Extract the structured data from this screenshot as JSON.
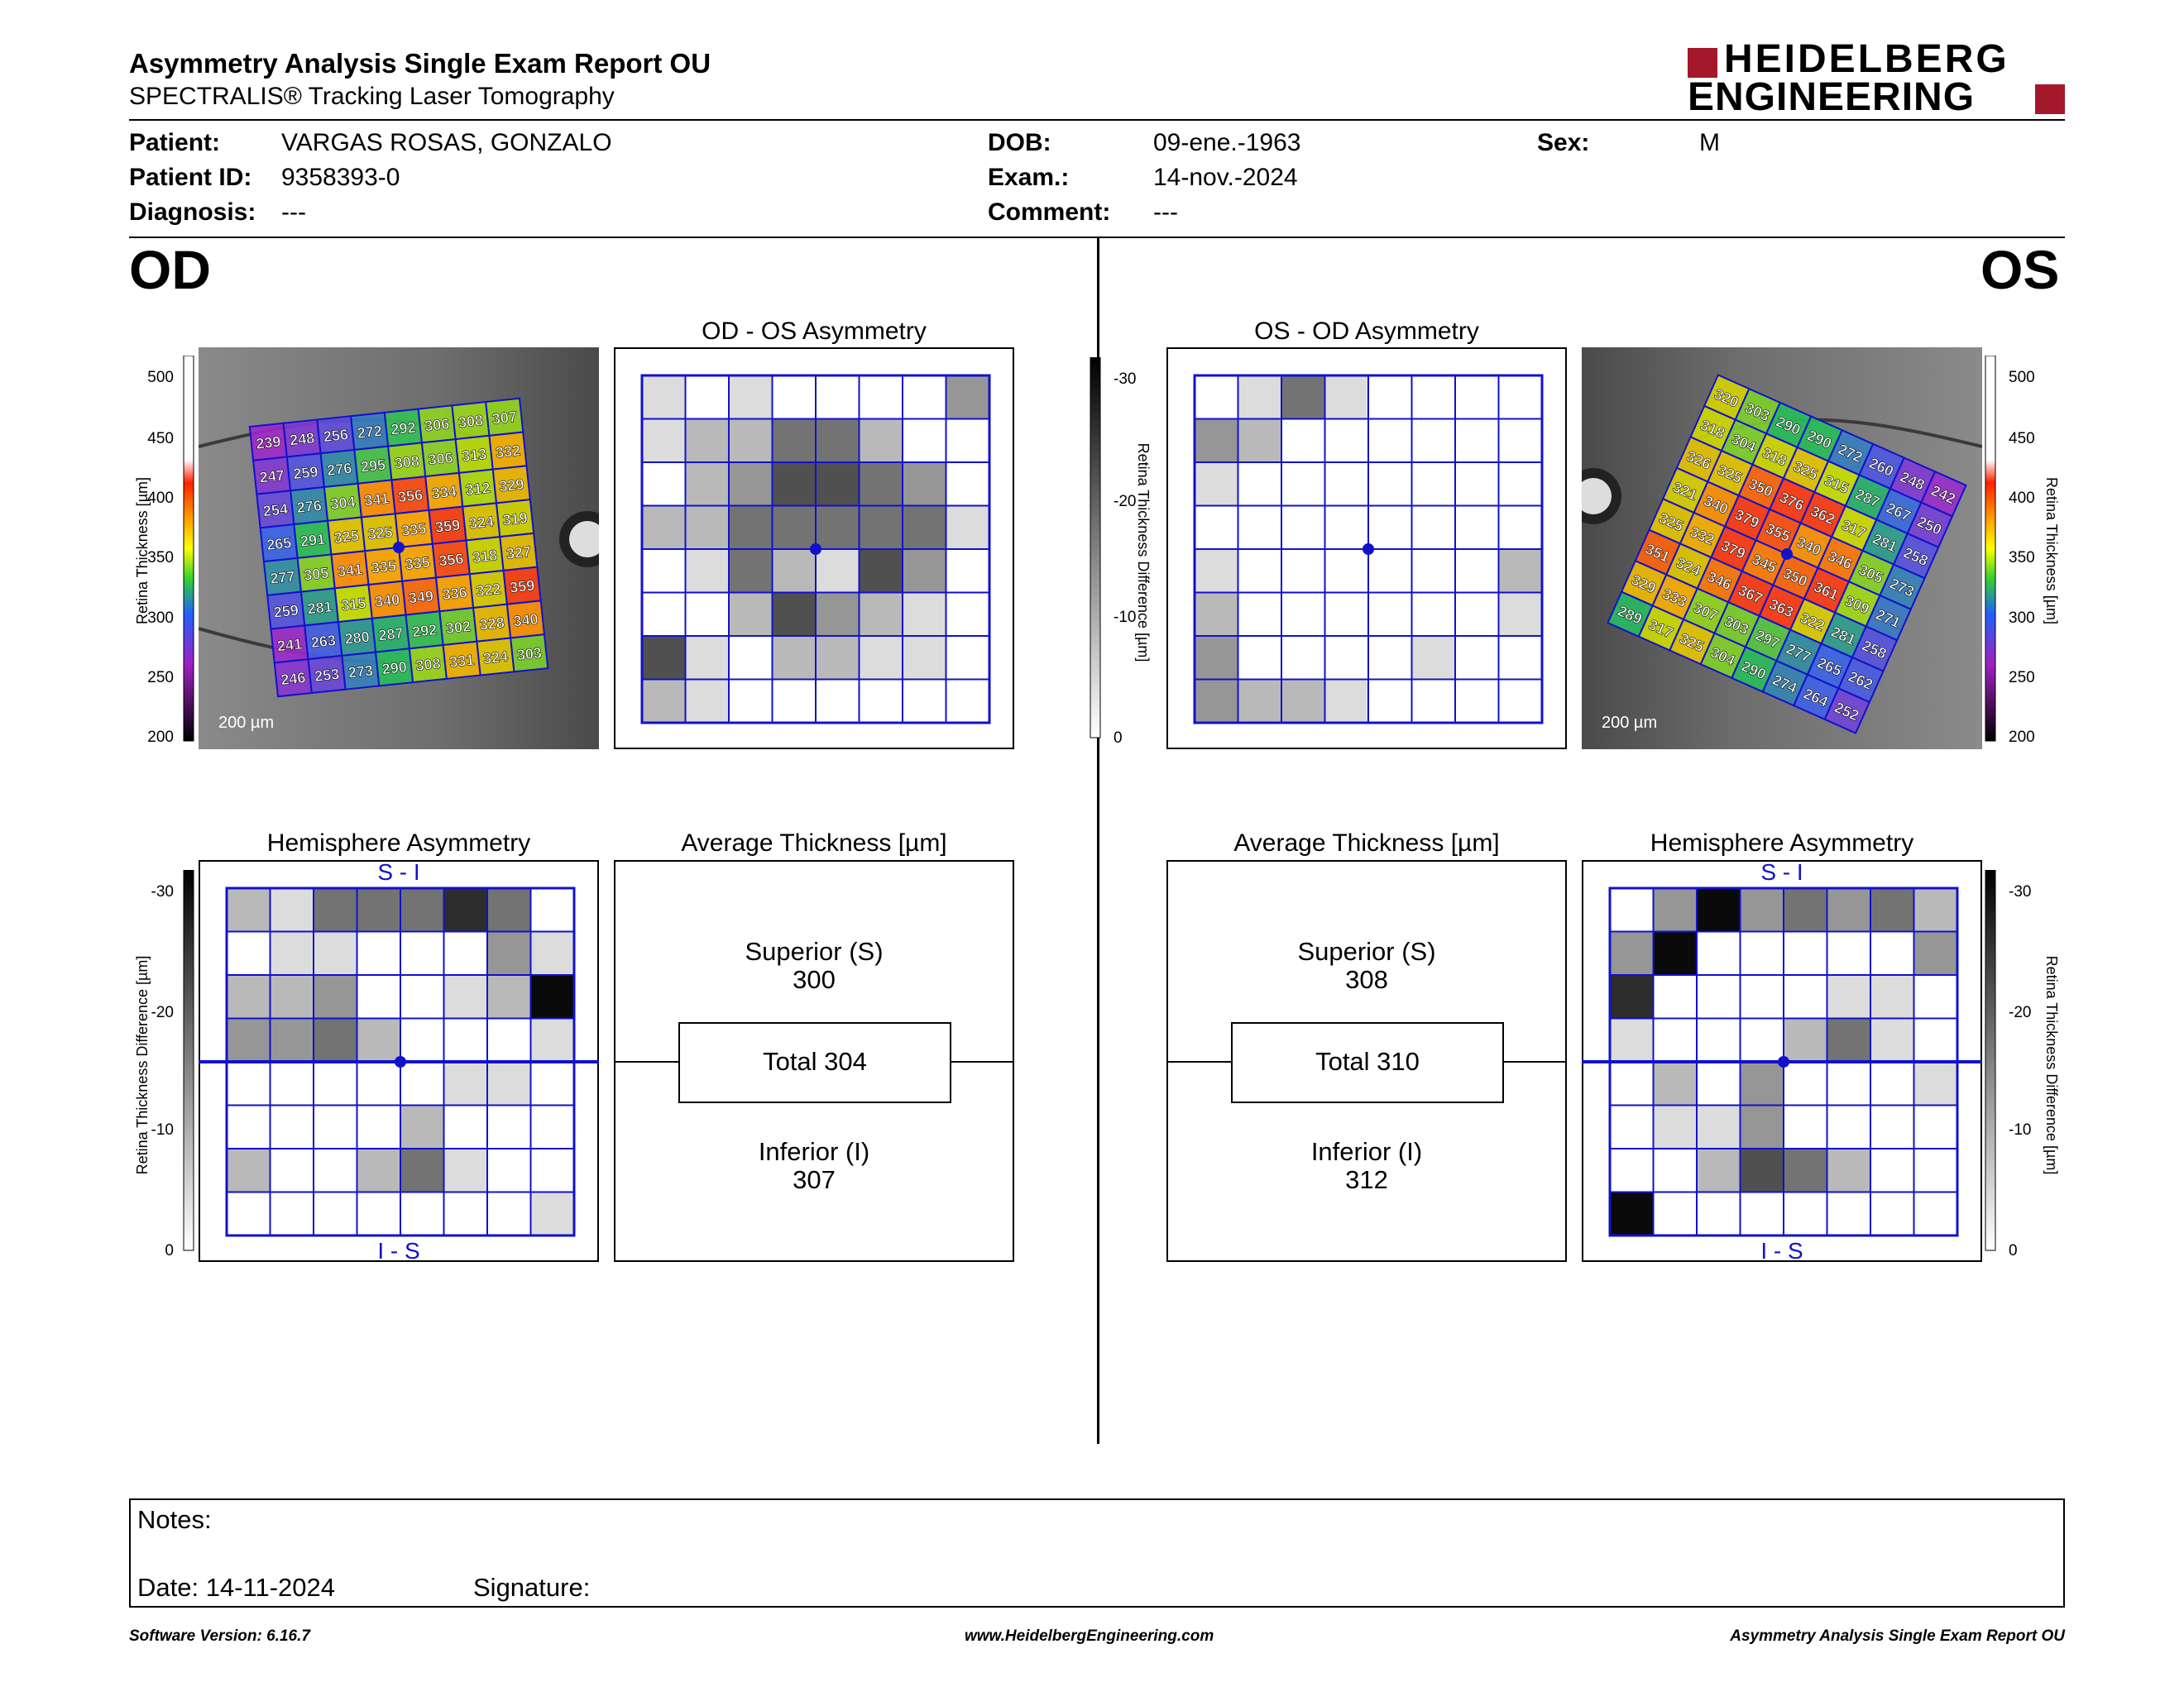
{
  "header": {
    "title": "Asymmetry Analysis Single Exam Report OU",
    "subtitle": "SPECTRALIS® Tracking Laser Tomography",
    "logo_line1": "HEIDELBERG",
    "logo_line2": "ENGINEERING"
  },
  "patient": {
    "patient_label": "Patient:",
    "patient_value": "VARGAS ROSAS, GONZALO",
    "id_label": "Patient ID:",
    "id_value": "9358393-0",
    "diagnosis_label": "Diagnosis:",
    "diagnosis_value": "---",
    "dob_label": "DOB:",
    "dob_value": "09-ene.-1963",
    "exam_label": "Exam.:",
    "exam_value": "14-nov.-2024",
    "comment_label": "Comment:",
    "comment_value": "---",
    "sex_label": "Sex:",
    "sex_value": "M"
  },
  "od": {
    "eye_label": "OD",
    "asym_title": "OD - OS Asymmetry",
    "hemi_title": "Hemisphere Asymmetry",
    "avg_title": "Average Thickness [µm]",
    "superior_label": "Superior (S)",
    "superior_value": "300",
    "total": "Total 304",
    "inferior_label": "Inferior (I)",
    "inferior_value": "307",
    "scale_label": "200 µm",
    "hemi_top": "S - I",
    "hemi_bottom": "I - S",
    "thickness_grid": [
      [
        239,
        248,
        256,
        272,
        292,
        306,
        308,
        307
      ],
      [
        247,
        259,
        276,
        295,
        308,
        306,
        313,
        332
      ],
      [
        254,
        276,
        304,
        341,
        356,
        334,
        312,
        329
      ],
      [
        265,
        291,
        325,
        325,
        335,
        359,
        324,
        319
      ],
      [
        277,
        305,
        341,
        335,
        335,
        356,
        318,
        327
      ],
      [
        259,
        281,
        315,
        340,
        349,
        336,
        322,
        359
      ],
      [
        241,
        263,
        280,
        287,
        292,
        302,
        328,
        340
      ],
      [
        246,
        253,
        273,
        290,
        308,
        331,
        324,
        303
      ]
    ],
    "asym_grid": [
      [
        1,
        0,
        1,
        0,
        0,
        0,
        0,
        3
      ],
      [
        1,
        2,
        2,
        4,
        4,
        2,
        0,
        0
      ],
      [
        0,
        2,
        3,
        5,
        5,
        4,
        3,
        0
      ],
      [
        2,
        2,
        4,
        4,
        4,
        4,
        4,
        1
      ],
      [
        0,
        1,
        4,
        2,
        1,
        5,
        3,
        0
      ],
      [
        0,
        0,
        2,
        5,
        3,
        2,
        1,
        0
      ],
      [
        5,
        1,
        0,
        2,
        2,
        1,
        1,
        0
      ],
      [
        2,
        1,
        0,
        0,
        0,
        0,
        0,
        0
      ]
    ],
    "hemi_grid": [
      [
        2,
        1,
        4,
        4,
        4,
        6,
        4,
        0
      ],
      [
        0,
        1,
        1,
        0,
        0,
        0,
        3,
        1
      ],
      [
        2,
        2,
        3,
        0,
        0,
        1,
        2,
        7
      ],
      [
        3,
        3,
        4,
        2,
        0,
        0,
        0,
        1
      ],
      [
        0,
        0,
        0,
        0,
        0,
        1,
        1,
        0
      ],
      [
        0,
        0,
        0,
        0,
        2,
        0,
        0,
        0
      ],
      [
        2,
        0,
        0,
        2,
        4,
        1,
        0,
        0
      ],
      [
        0,
        0,
        0,
        0,
        0,
        0,
        0,
        1
      ]
    ]
  },
  "os": {
    "eye_label": "OS",
    "asym_title": "OS - OD Asymmetry",
    "hemi_title": "Hemisphere Asymmetry",
    "avg_title": "Average Thickness [µm]",
    "superior_label": "Superior (S)",
    "superior_value": "308",
    "total": "Total 310",
    "inferior_label": "Inferior (I)",
    "inferior_value": "312",
    "scale_label": "200 µm",
    "hemi_top": "S - I",
    "hemi_bottom": "I - S",
    "thickness_grid": [
      [
        320,
        303,
        290,
        290,
        272,
        260,
        248,
        242
      ],
      [
        318,
        304,
        318,
        325,
        315,
        287,
        267,
        250
      ],
      [
        326,
        325,
        350,
        376,
        362,
        317,
        281,
        258
      ],
      [
        321,
        340,
        379,
        355,
        340,
        346,
        305,
        273
      ],
      [
        325,
        332,
        379,
        345,
        350,
        361,
        309,
        271
      ],
      [
        351,
        324,
        346,
        367,
        363,
        322,
        281,
        258
      ],
      [
        329,
        333,
        307,
        303,
        297,
        277,
        265,
        262
      ],
      [
        289,
        317,
        325,
        304,
        290,
        274,
        264,
        252
      ]
    ],
    "asym_grid": [
      [
        0,
        1,
        4,
        1,
        0,
        0,
        0,
        0
      ],
      [
        3,
        2,
        0,
        0,
        0,
        0,
        0,
        0
      ],
      [
        1,
        0,
        0,
        0,
        0,
        0,
        0,
        0
      ],
      [
        0,
        0,
        0,
        0,
        0,
        0,
        0,
        0
      ],
      [
        1,
        0,
        0,
        0,
        0,
        0,
        0,
        2
      ],
      [
        2,
        0,
        0,
        0,
        0,
        0,
        0,
        1
      ],
      [
        3,
        0,
        0,
        0,
        0,
        1,
        0,
        0
      ],
      [
        3,
        2,
        2,
        1,
        0,
        0,
        0,
        0
      ]
    ],
    "hemi_grid": [
      [
        0,
        3,
        7,
        3,
        4,
        3,
        4,
        2
      ],
      [
        3,
        7,
        0,
        0,
        0,
        0,
        0,
        3
      ],
      [
        6,
        0,
        0,
        0,
        0,
        1,
        1,
        0
      ],
      [
        1,
        0,
        0,
        0,
        2,
        4,
        1,
        0
      ],
      [
        0,
        2,
        0,
        3,
        0,
        0,
        0,
        1
      ],
      [
        0,
        1,
        1,
        3,
        0,
        0,
        0,
        0
      ],
      [
        0,
        0,
        2,
        5,
        4,
        2,
        0,
        0
      ],
      [
        7,
        0,
        0,
        0,
        0,
        0,
        0,
        0
      ]
    ]
  },
  "scales": {
    "thickness_label": "Retina Thickness [µm]",
    "thickness_ticks": [
      "500",
      "450",
      "400",
      "350",
      "300",
      "250",
      "200"
    ],
    "diff_label": "Retina Thickness Difference [µm]",
    "diff_ticks": [
      "-30",
      "-20",
      "-10",
      "0"
    ]
  },
  "notes": {
    "notes_label": "Notes:",
    "date_label": "Date: 14-11-2024",
    "signature_label": "Signature:"
  },
  "footer": {
    "software": "Software Version: 6.16.7",
    "website": "www.HeidelbergEngineering.com",
    "report": "Asymmetry Analysis Single Exam Report OU"
  },
  "colors": {
    "brand_red": "#a3182a",
    "grid_blue": "#1111cc"
  }
}
